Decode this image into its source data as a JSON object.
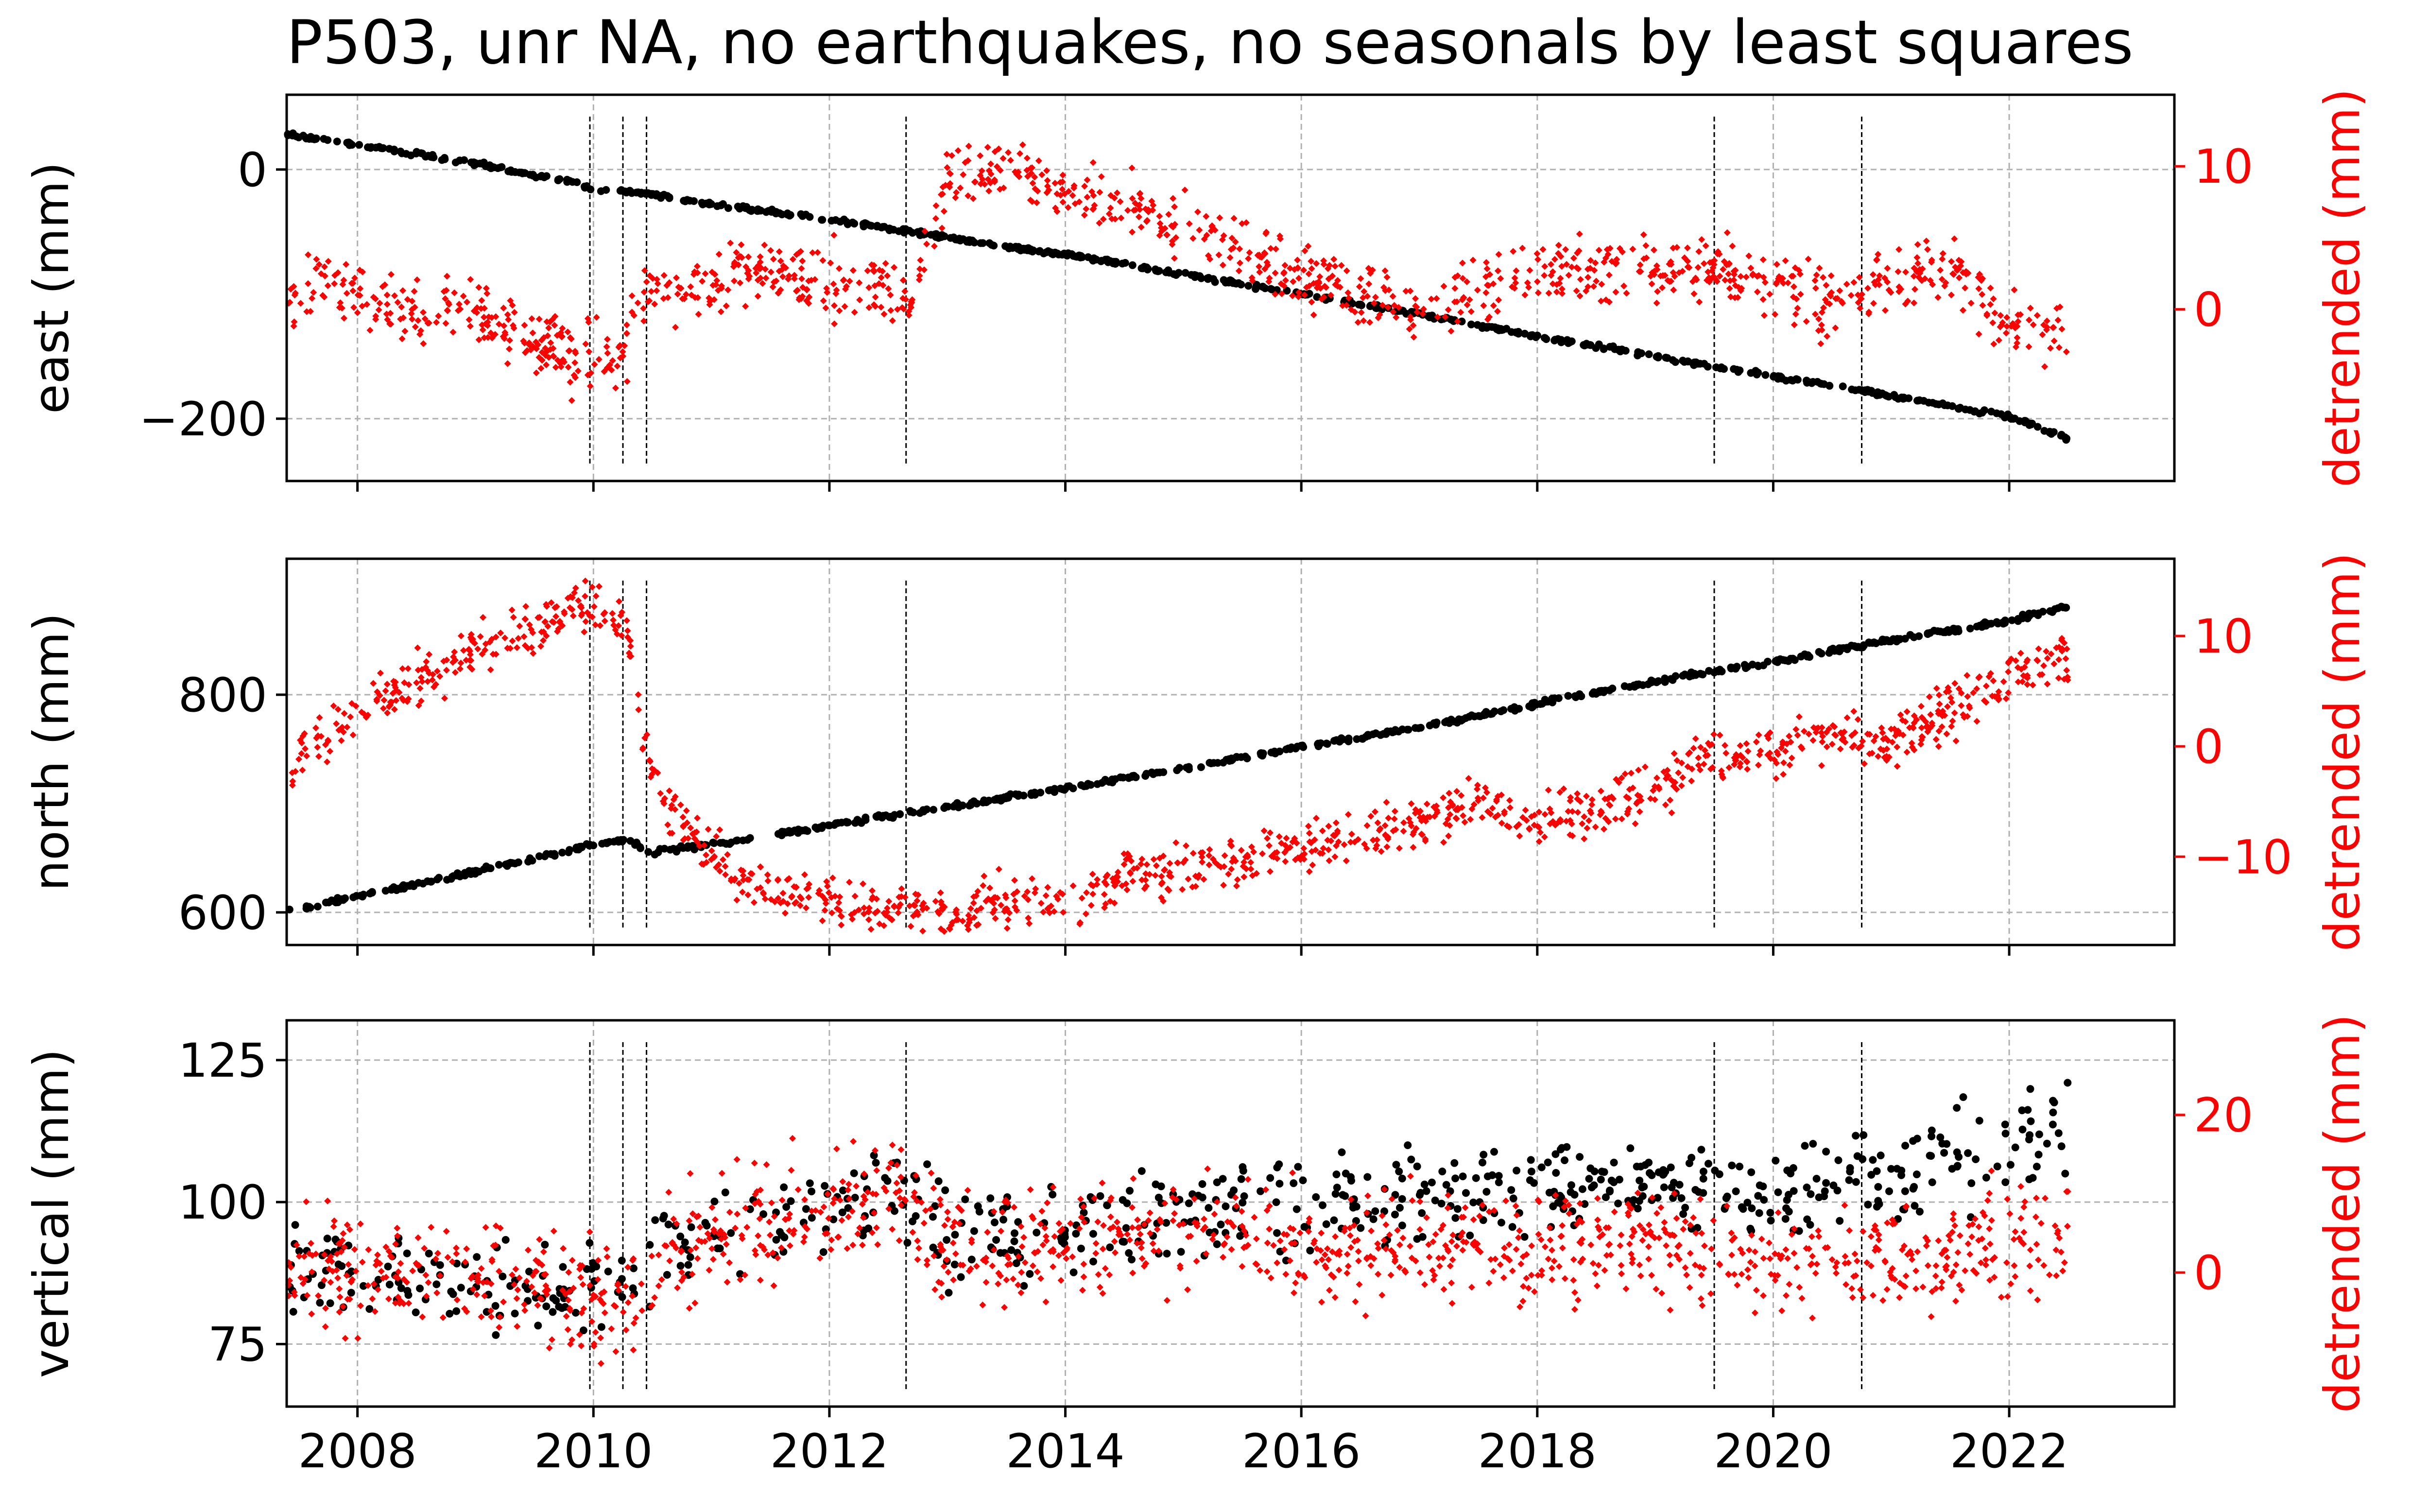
{
  "title": "P503, unr NA, no earthquakes, no seasonals by least squares",
  "colors": {
    "raw": "#000000",
    "detrended": "#ff0000",
    "grid": "#b0b0b0"
  },
  "chart_data": [
    {
      "type": "scatter",
      "panel": "east",
      "ylabel": "east (mm)",
      "y2label": "detrended (mm)",
      "xlim": [
        2007.4,
        2023.4
      ],
      "ylim": [
        -250,
        60
      ],
      "y2lim": [
        -12,
        15
      ],
      "yticks": [
        0,
        -200
      ],
      "yticklabels": [
        "0",
        "−200"
      ],
      "y2ticks": [
        10,
        0
      ],
      "y2ticklabels": [
        "10",
        "0"
      ],
      "grid": true,
      "series": [
        {
          "role": "raw",
          "color": "#000000",
          "axis": "left",
          "x": [
            2007.4,
            2008.0,
            2009.0,
            2009.9,
            2010.0,
            2010.3,
            2010.5,
            2011.0,
            2012.0,
            2012.7,
            2013.5,
            2014.0,
            2015.0,
            2016.0,
            2017.0,
            2018.0,
            2019.0,
            2019.5,
            2020.0,
            2020.8,
            2021.0,
            2022.0,
            2022.5
          ],
          "y": [
            28,
            20,
            5,
            -12,
            -15,
            -18,
            -20,
            -28,
            -40,
            -50,
            -62,
            -68,
            -84,
            -100,
            -116,
            -134,
            -150,
            -158,
            -166,
            -178,
            -182,
            -198,
            -216
          ]
        },
        {
          "role": "detrended",
          "color": "#ff0000",
          "axis": "right",
          "x": [
            2007.4,
            2007.6,
            2008.0,
            2008.5,
            2009.0,
            2009.5,
            2009.9,
            2010.0,
            2010.2,
            2010.4,
            2010.6,
            2011.0,
            2011.5,
            2012.0,
            2012.5,
            2012.7,
            2013.0,
            2013.5,
            2014.0,
            2014.5,
            2015.0,
            2015.5,
            2016.0,
            2016.5,
            2017.0,
            2017.5,
            2018.0,
            2018.5,
            2019.0,
            2019.5,
            2020.0,
            2020.5,
            2021.0,
            2021.5,
            2022.0,
            2022.5
          ],
          "y": [
            -1,
            2,
            1,
            0,
            0,
            -2,
            -4,
            -3,
            -4,
            1,
            1,
            2,
            3,
            2,
            1,
            1,
            9,
            10,
            8,
            7,
            6,
            4,
            2,
            1,
            0,
            1,
            3,
            3,
            3,
            3,
            2,
            0,
            2,
            3,
            -1,
            -2
          ]
        }
      ]
    },
    {
      "type": "scatter",
      "panel": "north",
      "ylabel": "north (mm)",
      "y2label": "detrended (mm)",
      "xlim": [
        2007.4,
        2023.4
      ],
      "ylim": [
        570,
        925
      ],
      "y2lim": [
        -18,
        17
      ],
      "yticks": [
        800,
        600
      ],
      "yticklabels": [
        "800",
        "600"
      ],
      "y2ticks": [
        10,
        0,
        -10
      ],
      "y2ticklabels": [
        "10",
        "0",
        "−10"
      ],
      "grid": true,
      "series": [
        {
          "role": "raw",
          "color": "#000000",
          "axis": "left",
          "x": [
            2007.4,
            2008.0,
            2009.0,
            2010.0,
            2010.3,
            2010.5,
            2011.0,
            2012.0,
            2013.0,
            2014.0,
            2015.0,
            2016.0,
            2017.0,
            2018.0,
            2019.0,
            2019.5,
            2020.0,
            2021.0,
            2022.0,
            2022.5
          ],
          "y": [
            600,
            615,
            637,
            662,
            666,
            655,
            662,
            680,
            697,
            714,
            732,
            752,
            770,
            792,
            812,
            822,
            830,
            850,
            868,
            882
          ]
        },
        {
          "role": "detrended",
          "color": "#ff0000",
          "axis": "right",
          "x": [
            2007.4,
            2007.7,
            2008.0,
            2008.5,
            2009.0,
            2009.5,
            2009.9,
            2010.1,
            2010.3,
            2010.4,
            2010.6,
            2011.0,
            2011.5,
            2012.0,
            2012.5,
            2013.0,
            2013.5,
            2014.0,
            2014.5,
            2015.0,
            2015.5,
            2016.0,
            2016.5,
            2017.0,
            2017.5,
            2017.9,
            2018.5,
            2019.0,
            2019.5,
            2020.0,
            2020.5,
            2020.9,
            2021.5,
            2022.0,
            2022.5
          ],
          "y": [
            -2,
            1,
            3,
            6,
            9,
            11,
            13,
            12,
            10,
            2,
            -5,
            -10,
            -13,
            -14,
            -15,
            -15,
            -14,
            -14,
            -12,
            -11,
            -10,
            -9,
            -8,
            -7,
            -5,
            -7,
            -6,
            -4,
            -1,
            0,
            1,
            0,
            3,
            6,
            8
          ]
        }
      ]
    },
    {
      "type": "scatter",
      "panel": "vertical",
      "ylabel": "vertical (mm)",
      "y2label": "detrended (mm)",
      "xlim": [
        2007.4,
        2023.4
      ],
      "ylim": [
        64,
        132
      ],
      "y2lim": [
        -17,
        32
      ],
      "yticks": [
        125,
        100,
        75
      ],
      "yticklabels": [
        "125",
        "100",
        "75"
      ],
      "y2ticks": [
        20,
        0
      ],
      "y2ticklabels": [
        "20",
        "0"
      ],
      "xticks": [
        2008,
        2010,
        2012,
        2014,
        2016,
        2018,
        2020,
        2022
      ],
      "xticklabels": [
        "2008",
        "2010",
        "2012",
        "2014",
        "2016",
        "2018",
        "2020",
        "2022"
      ],
      "grid": true,
      "series": [
        {
          "role": "raw",
          "color": "#000000",
          "axis": "left",
          "x": [
            2007.4,
            2008.0,
            2009.0,
            2010.0,
            2010.2,
            2010.6,
            2011.0,
            2011.5,
            2012.0,
            2012.6,
            2013.0,
            2014.0,
            2015.0,
            2016.0,
            2017.0,
            2018.0,
            2019.0,
            2020.0,
            2021.0,
            2021.5,
            2022.0,
            2022.5
          ],
          "y": [
            88,
            86,
            87,
            85,
            82,
            92,
            94,
            96,
            98,
            102,
            92,
            95,
            98,
            100,
            101,
            102,
            103,
            101,
            104,
            108,
            110,
            114
          ]
        },
        {
          "role": "detrended",
          "color": "#ff0000",
          "axis": "right",
          "x": [
            2007.4,
            2008.0,
            2009.0,
            2010.0,
            2010.2,
            2010.6,
            2011.0,
            2011.5,
            2012.0,
            2012.6,
            2013.0,
            2014.0,
            2015.0,
            2016.0,
            2017.0,
            2018.0,
            2019.0,
            2020.0,
            2021.0,
            2022.0,
            2022.5
          ],
          "y": [
            0,
            0,
            0,
            -3,
            -5,
            3,
            5,
            7,
            8,
            10,
            2,
            4,
            5,
            4,
            3,
            3,
            4,
            1,
            2,
            3,
            5
          ]
        }
      ]
    }
  ],
  "event_lines": [
    2009.97,
    2010.25,
    2010.45,
    2012.65,
    2019.5,
    2020.75
  ]
}
